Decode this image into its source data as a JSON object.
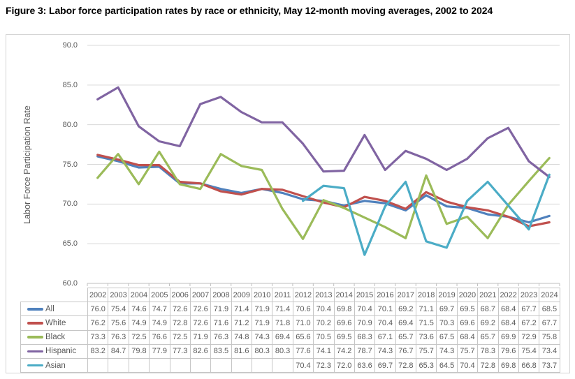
{
  "title": "Figure 3: Labor force participation rates by race or ethnicity, May 12-month moving averages, 2002 to 2024",
  "chart_data": {
    "type": "line",
    "title": "Figure 3: Labor force participation rates by race or ethnicity, May 12-month moving averages, 2002 to 2024",
    "xlabel": "",
    "ylabel": "Labor Force Participation Rate",
    "ylim": [
      60,
      90
    ],
    "y_tick_step": 5,
    "y_tick_labels": [
      "90.0",
      "85.0",
      "80.0",
      "75.0",
      "70.0",
      "65.0",
      "60.0"
    ],
    "grid": true,
    "legend_position": "left-of-data-table",
    "data_table_shown": true,
    "categories": [
      "2002",
      "2003",
      "2004",
      "2005",
      "2006",
      "2007",
      "2008",
      "2009",
      "2010",
      "2011",
      "2012",
      "2013",
      "2014",
      "2015",
      "2016",
      "2017",
      "2018",
      "2019",
      "2020",
      "2021",
      "2022",
      "2023",
      "2024"
    ],
    "series": [
      {
        "name": "All",
        "color": "#4F81BD",
        "values": [
          76.0,
          75.4,
          74.6,
          74.7,
          72.6,
          72.6,
          71.9,
          71.4,
          71.9,
          71.4,
          70.6,
          70.4,
          69.8,
          70.4,
          70.1,
          69.2,
          71.1,
          69.7,
          69.5,
          68.7,
          68.4,
          67.7,
          68.5
        ]
      },
      {
        "name": "White",
        "color": "#C0504D",
        "values": [
          76.2,
          75.6,
          74.9,
          74.9,
          72.8,
          72.6,
          71.6,
          71.2,
          71.9,
          71.8,
          71.0,
          70.2,
          69.6,
          70.9,
          70.4,
          69.4,
          71.5,
          70.3,
          69.6,
          69.2,
          68.4,
          67.2,
          67.7
        ]
      },
      {
        "name": "Black",
        "color": "#9BBB59",
        "values": [
          73.3,
          76.3,
          72.5,
          76.6,
          72.5,
          71.9,
          76.3,
          74.8,
          74.3,
          69.4,
          65.6,
          70.5,
          69.5,
          68.3,
          67.1,
          65.7,
          73.6,
          67.5,
          68.4,
          65.7,
          69.9,
          72.9,
          75.8
        ]
      },
      {
        "name": "Hispanic",
        "color": "#8064A2",
        "values": [
          83.2,
          84.7,
          79.8,
          77.9,
          77.3,
          82.6,
          83.5,
          81.6,
          80.3,
          80.3,
          77.6,
          74.1,
          74.2,
          78.7,
          74.3,
          76.7,
          75.7,
          74.3,
          75.7,
          78.3,
          79.6,
          75.4,
          73.4
        ]
      },
      {
        "name": "Asian",
        "color": "#4BACC6",
        "values": [
          null,
          null,
          null,
          null,
          null,
          null,
          null,
          null,
          null,
          null,
          70.4,
          72.3,
          72.0,
          63.6,
          69.7,
          72.8,
          65.3,
          64.5,
          70.4,
          72.8,
          69.8,
          66.8,
          73.7
        ]
      }
    ],
    "colors": {
      "gridline": "#D9D9D9",
      "axis": "#BFBFBF",
      "text_gray": "#595959",
      "table_border": "#C6C6C6"
    }
  }
}
